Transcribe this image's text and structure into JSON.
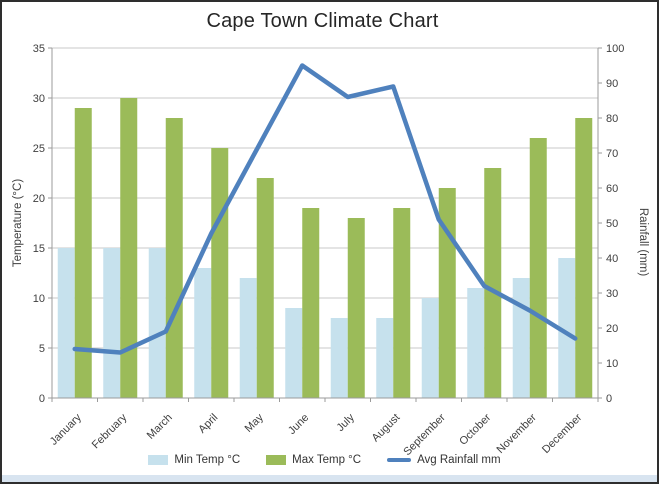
{
  "title": "Cape Town Climate Chart",
  "chart_data": {
    "type": "combo-bar-line",
    "categories": [
      "January",
      "February",
      "March",
      "April",
      "May",
      "June",
      "July",
      "August",
      "September",
      "October",
      "November",
      "December"
    ],
    "series": [
      {
        "name": "Min Temp °C",
        "type": "bar",
        "axis": "left",
        "color": "#c6e1ed",
        "values": [
          15,
          15,
          15,
          13,
          12,
          9,
          8,
          8,
          10,
          11,
          12,
          14
        ]
      },
      {
        "name": "Max Temp °C",
        "type": "bar",
        "axis": "left",
        "color": "#9bbb59",
        "values": [
          29,
          30,
          28,
          25,
          22,
          19,
          18,
          19,
          21,
          23,
          26,
          28
        ]
      },
      {
        "name": "Avg Rainfall mm",
        "type": "line",
        "axis": "right",
        "color": "#4f81bd",
        "values": [
          14,
          13,
          19,
          47,
          71,
          95,
          86,
          89,
          51,
          32,
          25,
          17
        ]
      }
    ],
    "left_axis": {
      "title": "Temperature (°C)",
      "min": 0,
      "max": 35,
      "step": 5,
      "tick_labels": [
        "0",
        "5",
        "10",
        "15",
        "20",
        "25",
        "30",
        "35"
      ]
    },
    "right_axis": {
      "title": "Rainfall (mm)",
      "min": 0,
      "max": 100,
      "step": 10,
      "tick_labels": [
        "0",
        "10",
        "20",
        "30",
        "40",
        "50",
        "60",
        "70",
        "80",
        "90",
        "100"
      ]
    },
    "legend_position": "bottom",
    "grid": true,
    "gridline_color": "#c9c9c9",
    "axis_line_color": "#9b9b9b"
  }
}
